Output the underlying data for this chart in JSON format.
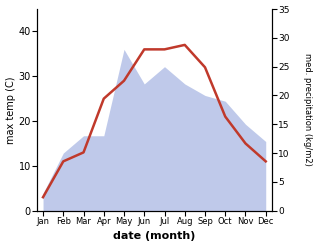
{
  "months": [
    "Jan",
    "Feb",
    "Mar",
    "Apr",
    "May",
    "Jun",
    "Jul",
    "Aug",
    "Sep",
    "Oct",
    "Nov",
    "Dec"
  ],
  "temp": [
    3,
    11,
    13,
    25,
    29,
    36,
    36,
    37,
    32,
    21,
    15,
    11
  ],
  "precip": [
    3,
    10,
    13,
    13,
    28,
    22,
    25,
    22,
    20,
    19,
    15,
    12
  ],
  "temp_color": "#c0392b",
  "precip_fill_color": "#b8c4e8",
  "precip_edge_color": "#9aaad4",
  "xlabel": "date (month)",
  "ylabel_left": "max temp (C)",
  "ylabel_right": "med. precipitation (kg/m2)",
  "ylim_left": [
    0,
    45
  ],
  "ylim_right": [
    0,
    35
  ],
  "yticks_left": [
    0,
    10,
    20,
    30,
    40
  ],
  "yticks_right": [
    0,
    5,
    10,
    15,
    20,
    25,
    30,
    35
  ],
  "bg_color": "#ffffff"
}
